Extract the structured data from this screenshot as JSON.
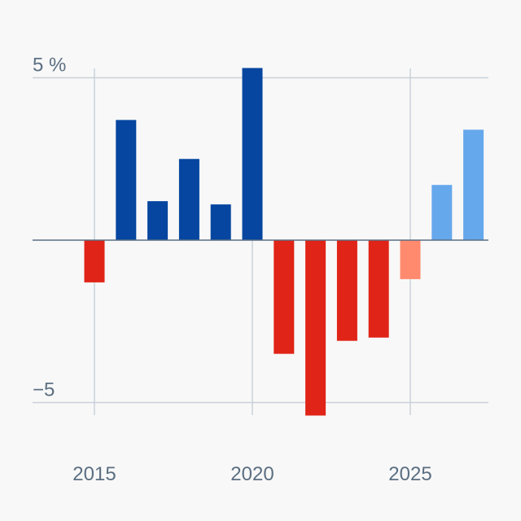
{
  "chart_data": {
    "type": "bar",
    "title": "",
    "xlabel": "",
    "ylabel": "",
    "x": [
      2015,
      2016,
      2017,
      2018,
      2019,
      2020,
      2021,
      2022,
      2023,
      2024,
      2025,
      2026,
      2027
    ],
    "values": [
      -1.3,
      3.7,
      1.2,
      2.5,
      1.1,
      5.3,
      -3.5,
      -5.4,
      -3.1,
      -3.0,
      -1.2,
      1.7,
      3.4
    ],
    "forecast": [
      false,
      false,
      false,
      false,
      false,
      false,
      false,
      false,
      false,
      false,
      true,
      true,
      true
    ],
    "ylim": [
      -5.5,
      5.5
    ],
    "y_ticks": [
      {
        "value": 5,
        "label": "5 %"
      },
      {
        "value": -5,
        "label": "−5"
      }
    ],
    "x_ticks": [
      {
        "value": 2015,
        "label": "2015"
      },
      {
        "value": 2020,
        "label": "2020"
      },
      {
        "value": 2025,
        "label": "2025"
      }
    ],
    "grid": true,
    "colors": {
      "positive": "#0646a0",
      "negative": "#e02417",
      "positive_forecast": "#66a8ec",
      "negative_forecast": "#ff8a6e",
      "grid": "#c9d2da",
      "zero_line": "#5b6f82"
    }
  }
}
